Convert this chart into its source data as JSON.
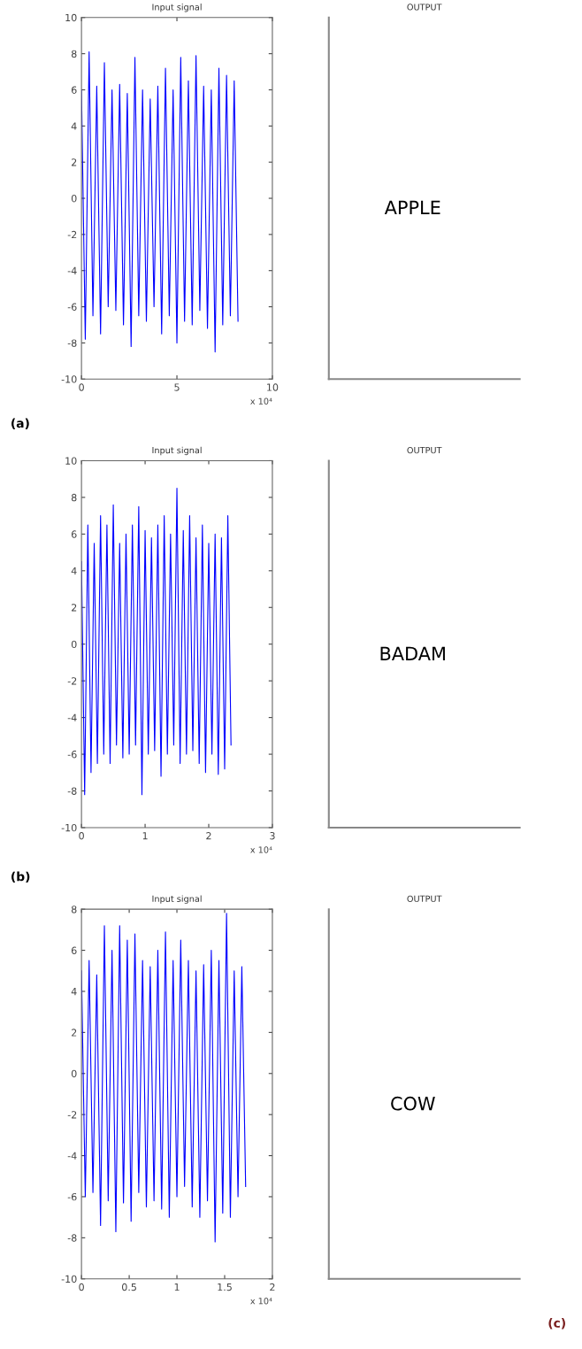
{
  "chart_data": [
    {
      "type": "line",
      "title": "Input signal",
      "xlabel": "x 10⁴",
      "annotations": [
        "(a)"
      ],
      "x": [
        0,
        0.2,
        0.4,
        0.6,
        0.8,
        1.0,
        1.2,
        1.4,
        1.6,
        1.8,
        2.0,
        2.2,
        2.4,
        2.6,
        2.8,
        3.0,
        3.2,
        3.4,
        3.6,
        3.8,
        4.0,
        4.2,
        4.4,
        4.6,
        4.8,
        5.0,
        5.2,
        5.4,
        5.6,
        5.8,
        6.0,
        6.2,
        6.4,
        6.6,
        6.8,
        7.0,
        7.2,
        7.4,
        7.6,
        7.8,
        8.0,
        8.2
      ],
      "series": [
        {
          "color": "#0000ff",
          "values": [
            6,
            -7.8,
            8.1,
            -6.5,
            6.2,
            -7.5,
            7.5,
            -6,
            6,
            -6.2,
            6.3,
            -7,
            5.8,
            -8.2,
            7.8,
            -6.5,
            6,
            -6.8,
            5.5,
            -6,
            6.2,
            -7.5,
            7.2,
            -6.5,
            6,
            -8,
            7.8,
            -6.8,
            6.5,
            -7,
            7.9,
            -6.2,
            6.2,
            -7.2,
            6,
            -8.5,
            7.2,
            -7,
            6.8,
            -6.5,
            6.5,
            -6.8
          ]
        }
      ],
      "xlim": [
        0,
        10
      ],
      "xticks": [
        0,
        5,
        10
      ],
      "ylim": [
        -10,
        10
      ],
      "yticks": [
        -10,
        -8,
        -6,
        -4,
        -2,
        0,
        2,
        4,
        6,
        8,
        10
      ]
    },
    {
      "type": "other",
      "title": "OUTPUT",
      "annotations": [
        "APPLE"
      ]
    },
    {
      "type": "line",
      "title": "Input signal",
      "xlabel": "x 10⁴",
      "annotations": [
        "(b)"
      ],
      "x": [
        0,
        0.05,
        0.1,
        0.15,
        0.2,
        0.25,
        0.3,
        0.35,
        0.4,
        0.45,
        0.5,
        0.55,
        0.6,
        0.65,
        0.7,
        0.75,
        0.8,
        0.85,
        0.9,
        0.95,
        1.0,
        1.05,
        1.1,
        1.15,
        1.2,
        1.25,
        1.3,
        1.35,
        1.4,
        1.45,
        1.5,
        1.55,
        1.6,
        1.65,
        1.7,
        1.75,
        1.8,
        1.85,
        1.9,
        1.95,
        2.0,
        2.05,
        2.1,
        2.15,
        2.2,
        2.25,
        2.3,
        2.35
      ],
      "series": [
        {
          "color": "#0000ff",
          "values": [
            4.5,
            -8.2,
            6.5,
            -7,
            5.5,
            -6.5,
            7,
            -6,
            6.5,
            -6.5,
            7.6,
            -5.5,
            5.5,
            -6.2,
            6,
            -6,
            6.5,
            -5.5,
            7.5,
            -8.2,
            6.2,
            -6,
            5.8,
            -5.8,
            6.5,
            -7.2,
            7,
            -6,
            6,
            -5.5,
            8.5,
            -6.5,
            6.2,
            -6,
            7,
            -5.8,
            5.8,
            -6.5,
            6.5,
            -7,
            5.5,
            -6,
            6,
            -7.1,
            5.8,
            -6.8,
            7,
            -5.5
          ]
        }
      ],
      "xlim": [
        0,
        3
      ],
      "xticks": [
        0,
        1,
        2,
        3
      ],
      "ylim": [
        -10,
        10
      ],
      "yticks": [
        -10,
        -8,
        -6,
        -4,
        -2,
        0,
        2,
        4,
        6,
        8,
        10
      ]
    },
    {
      "type": "other",
      "title": "OUTPUT",
      "annotations": [
        "BADAM"
      ]
    },
    {
      "type": "line",
      "title": "Input signal",
      "xlabel": "x 10⁴",
      "annotations": [
        "(c)"
      ],
      "x": [
        0,
        0.04,
        0.08,
        0.12,
        0.16,
        0.2,
        0.24,
        0.28,
        0.32,
        0.36,
        0.4,
        0.44,
        0.48,
        0.52,
        0.56,
        0.6,
        0.64,
        0.68,
        0.72,
        0.76,
        0.8,
        0.84,
        0.88,
        0.92,
        0.96,
        1.0,
        1.04,
        1.08,
        1.12,
        1.16,
        1.2,
        1.24,
        1.28,
        1.32,
        1.36,
        1.4,
        1.44,
        1.48,
        1.52,
        1.56,
        1.6,
        1.64,
        1.68,
        1.72
      ],
      "series": [
        {
          "color": "#0000ff",
          "values": [
            5,
            -6,
            5.5,
            -5.8,
            4.8,
            -7.4,
            7.2,
            -6.2,
            6,
            -7.7,
            7.2,
            -6.3,
            6.5,
            -7.2,
            6.8,
            -5.8,
            5.5,
            -6.5,
            5.2,
            -6.2,
            6,
            -6.6,
            6.9,
            -7,
            5.5,
            -6,
            6.5,
            -5.5,
            5.5,
            -6.5,
            5,
            -7,
            5.3,
            -6.2,
            6,
            -8.2,
            5.5,
            -6.8,
            7.8,
            -7,
            5,
            -6,
            5.2,
            -5.5
          ]
        }
      ],
      "xlim": [
        0,
        2
      ],
      "xticks": [
        0,
        0.5,
        1,
        1.5,
        2
      ],
      "ylim": [
        -10,
        8
      ],
      "yticks": [
        -10,
        -8,
        -6,
        -4,
        -2,
        0,
        2,
        4,
        6,
        8
      ]
    },
    {
      "type": "other",
      "title": "OUTPUT",
      "annotations": [
        "COW"
      ]
    }
  ]
}
